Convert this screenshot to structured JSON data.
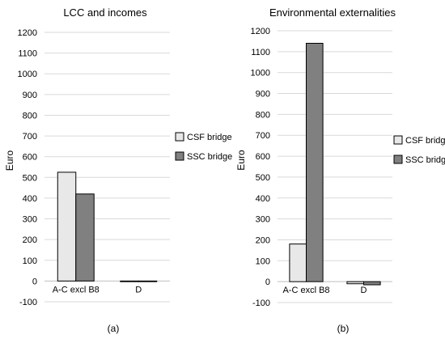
{
  "colors": {
    "csf": "#e8e8e8",
    "ssc": "#808080",
    "grid": "#d9d9d9",
    "axis": "#bfbfbf",
    "bar_edge": "#000000",
    "text": "#000000"
  },
  "chart_data": [
    {
      "type": "bar",
      "panel_label": "(a)",
      "title": "LCC and incomes",
      "ylabel": "Euro",
      "xlabel": "",
      "ylim": [
        -100,
        1200
      ],
      "yticks": [
        -100,
        0,
        100,
        200,
        300,
        400,
        500,
        600,
        700,
        800,
        900,
        1000,
        1100,
        1200
      ],
      "grid": true,
      "legend_position": "right",
      "categories": [
        "A-C excl B8",
        "D"
      ],
      "series": [
        {
          "name": "CSF bridge",
          "values": [
            525,
            0
          ]
        },
        {
          "name": "SSC bridge",
          "values": [
            420,
            0
          ]
        }
      ]
    },
    {
      "type": "bar",
      "panel_label": "(b)",
      "title": "Environmental externalities",
      "ylabel": "Euro",
      "xlabel": "",
      "ylim": [
        -100,
        1200
      ],
      "yticks": [
        -100,
        0,
        100,
        200,
        300,
        400,
        500,
        600,
        700,
        800,
        900,
        1000,
        1100,
        1200
      ],
      "grid": true,
      "legend_position": "right",
      "categories": [
        "A-C excl B8",
        "D"
      ],
      "series": [
        {
          "name": "CSF bridge",
          "values": [
            180,
            -10
          ]
        },
        {
          "name": "SSC bridge",
          "values": [
            1140,
            -15
          ]
        }
      ]
    }
  ]
}
